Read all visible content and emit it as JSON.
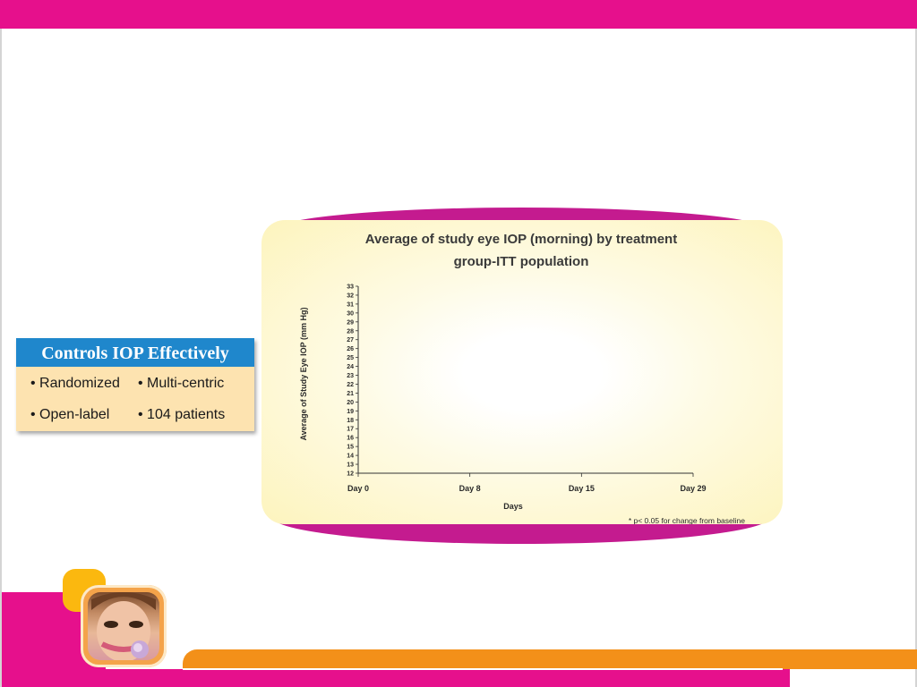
{
  "info_card": {
    "title": "Controls IOP Effectively",
    "items": [
      "• Randomized",
      "• Multi-centric",
      "• Open-label",
      "• 104 patients"
    ]
  },
  "colors": {
    "brand_pink": "#e6108c",
    "band_magenta": "#c41b8f",
    "accent_orange": "#f39019",
    "header_blue": "#1f87cc",
    "card_cream": "#fde3b0"
  },
  "icons": [
    "portrait-photo-icon"
  ],
  "chart_data": {
    "type": "line",
    "title_lines": [
      "Average of study eye IOP (morning) by treatment",
      "group-ITT population"
    ],
    "xlabel": "Days",
    "ylabel": "Average of Study Eye IOP (mm Hg)",
    "categories": [
      "Day 0",
      "Day 8",
      "Day 15",
      "Day 29"
    ],
    "ylim": [
      12,
      33
    ],
    "yticks": [
      12,
      13,
      14,
      15,
      16,
      17,
      18,
      19,
      20,
      21,
      22,
      23,
      24,
      25,
      26,
      27,
      28,
      29,
      30,
      31,
      32,
      33
    ],
    "series": [],
    "grid": false,
    "footnote": "* p< 0.05 for change from baseline"
  }
}
